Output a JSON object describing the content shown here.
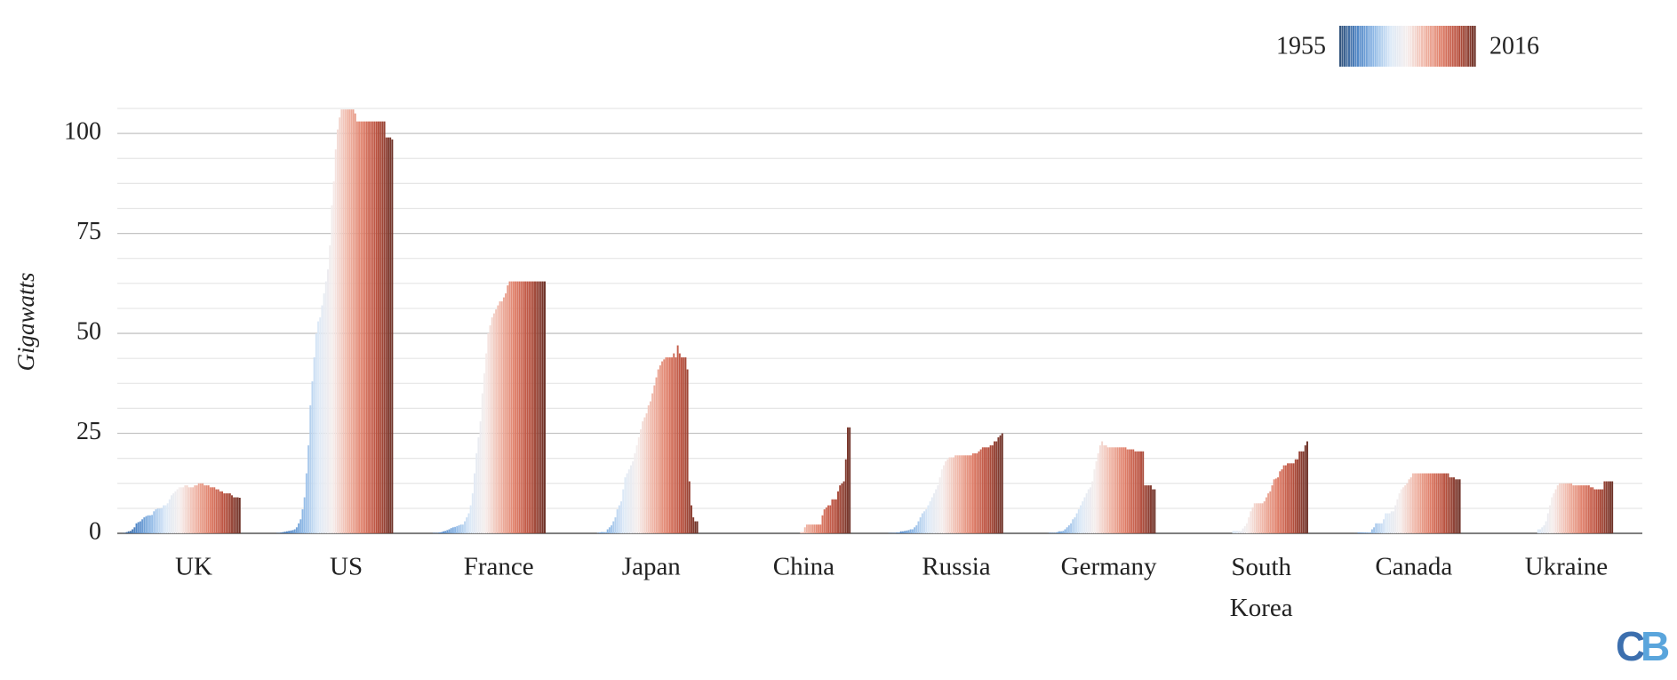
{
  "chart_data": {
    "type": "year_bars",
    "y_label": "Gigawatts",
    "legend": {
      "labels": [
        "1955",
        "2016"
      ]
    },
    "logo": [
      "C",
      "B"
    ],
    "colormap": [
      "#34557d",
      "#4f85c5",
      "#8fb9e6",
      "#dce9f7",
      "#f6eeec",
      "#f0b7a8",
      "#df7e68",
      "#b8503e",
      "#6e3228"
    ],
    "ylim": [
      0,
      106.25
    ],
    "yticks": [
      0,
      25,
      50,
      75,
      100
    ],
    "minor_yticks": [
      6.25,
      12.5,
      18.75,
      31.25,
      37.5,
      43.75,
      56.25,
      62.5,
      68.75,
      81.25,
      87.5,
      93.75,
      106.25
    ],
    "grid": true,
    "categories": [
      "UK",
      "US",
      "France",
      "Japan",
      "China",
      "Russia",
      "Germany",
      "South Korea",
      "Canada",
      "Ukraine"
    ],
    "values": [
      [
        0,
        0.05,
        0.1,
        0.3,
        0.5,
        0.6,
        1,
        1.5,
        2.5,
        2.8,
        3,
        3.5,
        4,
        4.3,
        4.5,
        4.5,
        4.6,
        5.5,
        6,
        6.2,
        6.2,
        6.3,
        7,
        7,
        7.5,
        8.5,
        9.5,
        10,
        10.5,
        11,
        11.5,
        11.5,
        11.5,
        12,
        12,
        11.5,
        11.5,
        11.5,
        12,
        12,
        12.5,
        12.5,
        12.5,
        12,
        12,
        12,
        11.5,
        11.5,
        11.5,
        11,
        11,
        10.5,
        10.5,
        10,
        10,
        10,
        10,
        9.5,
        9,
        9,
        9,
        8.9
      ],
      [
        0,
        0,
        0.1,
        0.1,
        0.2,
        0.3,
        0.4,
        0.5,
        0.6,
        0.7,
        0.8,
        1,
        1.5,
        2.5,
        3.5,
        6,
        9,
        15,
        22,
        32,
        38,
        44,
        50,
        53,
        54,
        57,
        60,
        63,
        66,
        72,
        82,
        88,
        96,
        101,
        104,
        106,
        106,
        106,
        106,
        106,
        106,
        106,
        105,
        103,
        103,
        103,
        103,
        103,
        103,
        103,
        103,
        103,
        103,
        103,
        103,
        103,
        103,
        103,
        99,
        99,
        99,
        98.5
      ],
      [
        0,
        0,
        0,
        0,
        0.1,
        0.1,
        0.1,
        0.2,
        0.3,
        0.5,
        0.6,
        0.8,
        1,
        1.3,
        1.5,
        1.6,
        1.8,
        2,
        2.2,
        2.2,
        3,
        4,
        5,
        7,
        10,
        15,
        20,
        24,
        28,
        35,
        40,
        45,
        50,
        52,
        54,
        55,
        56,
        57,
        58,
        58,
        59,
        60,
        62,
        63,
        63,
        63,
        63,
        63,
        63,
        63,
        63,
        63,
        63,
        63,
        63,
        63,
        63,
        63,
        63,
        63,
        63,
        63
      ],
      [
        0,
        0,
        0,
        0,
        0,
        0,
        0,
        0,
        0,
        0,
        0.1,
        0.2,
        0.3,
        0.3,
        0.3,
        1,
        1.5,
        2,
        3,
        4,
        6,
        7,
        8,
        11,
        14,
        15,
        16,
        17,
        18,
        20,
        22,
        24,
        26,
        28,
        29,
        30,
        32,
        33,
        35,
        37,
        39,
        41,
        42,
        43,
        43.5,
        44,
        44,
        44,
        44,
        45,
        44,
        47,
        45,
        44,
        44,
        44,
        41,
        13,
        7,
        4,
        3,
        3
      ],
      [
        0,
        0,
        0,
        0,
        0,
        0,
        0,
        0,
        0,
        0,
        0,
        0,
        0,
        0,
        0,
        0,
        0,
        0,
        0,
        0,
        0,
        0,
        0,
        0,
        0,
        0,
        0,
        0,
        0,
        0,
        0,
        0,
        0,
        0,
        0,
        0,
        0.3,
        0.3,
        1.5,
        2.2,
        2.2,
        2.2,
        2.2,
        2.2,
        2.2,
        2.2,
        2.2,
        4.5,
        6,
        6.5,
        7,
        7,
        8.5,
        8.5,
        8.5,
        10.5,
        12,
        12.5,
        13,
        18.5,
        26.5,
        26.5
      ],
      [
        0.005,
        0.005,
        0.005,
        0.1,
        0.1,
        0.1,
        0.1,
        0.2,
        0.2,
        0.5,
        0.5,
        0.6,
        0.7,
        0.8,
        1,
        1,
        1.5,
        2,
        3,
        4,
        5,
        5.5,
        6,
        7,
        8,
        9,
        10,
        11,
        12,
        14,
        16,
        17,
        18,
        18.5,
        19,
        19,
        19,
        19.5,
        19.5,
        19.5,
        19.5,
        19.5,
        19.5,
        19.5,
        19.5,
        19.5,
        20,
        20,
        20,
        20.5,
        21,
        21.5,
        21.5,
        21.5,
        21.5,
        22,
        22,
        23,
        23,
        24,
        24.5,
        25
      ],
      [
        0,
        0,
        0,
        0,
        0,
        0,
        0.02,
        0.1,
        0.1,
        0.1,
        0.1,
        0.3,
        0.5,
        0.5,
        0.6,
        1,
        1.5,
        2,
        2.5,
        3.5,
        4,
        5,
        6,
        7,
        8,
        9,
        10,
        11,
        11.5,
        13,
        16,
        18,
        20,
        22,
        23,
        22,
        22,
        21.5,
        21.5,
        21.5,
        21.5,
        21.5,
        21.5,
        21.5,
        21.5,
        21.5,
        21.5,
        21,
        21,
        21,
        21,
        20.5,
        20.5,
        20.5,
        20.5,
        20.5,
        12,
        12,
        12,
        12,
        11,
        11
      ],
      [
        0,
        0,
        0,
        0,
        0,
        0,
        0,
        0,
        0,
        0,
        0,
        0,
        0,
        0,
        0,
        0,
        0,
        0,
        0,
        0,
        0,
        0,
        0,
        0.6,
        0.6,
        0.6,
        0.6,
        0.6,
        1.2,
        1.8,
        2.5,
        4,
        5.5,
        6.5,
        7.5,
        7.5,
        7.5,
        7.5,
        7.5,
        8,
        9,
        10,
        10.5,
        12,
        13.5,
        13.7,
        14,
        15.5,
        16,
        17,
        17,
        17.5,
        17.5,
        17.5,
        17.5,
        18.5,
        18.5,
        20.5,
        20.5,
        20.5,
        22,
        23
      ],
      [
        0,
        0,
        0,
        0,
        0,
        0,
        0,
        0.02,
        0.02,
        0.2,
        0.2,
        0.2,
        0.2,
        0.2,
        0.2,
        0.2,
        1,
        1.5,
        2.5,
        2.5,
        2.5,
        2.5,
        3.5,
        5,
        5,
        5,
        5.5,
        5.5,
        7,
        8.5,
        10,
        11,
        11.5,
        12,
        12.5,
        13.5,
        14,
        15,
        15,
        15,
        15,
        15,
        15,
        15,
        15,
        15,
        15,
        15,
        15,
        15,
        15,
        15,
        15,
        15,
        15,
        15,
        14,
        14,
        14,
        13.5,
        13.5,
        13.5
      ],
      [
        0,
        0,
        0,
        0,
        0,
        0,
        0,
        0,
        0,
        0,
        0,
        0,
        0,
        0,
        0,
        0,
        0,
        0,
        0,
        0,
        0,
        0,
        0,
        1,
        1,
        1.5,
        2,
        3,
        5,
        7,
        9,
        10,
        11,
        12,
        12.5,
        12.5,
        12.5,
        12.5,
        12.5,
        12.5,
        12.5,
        12,
        12,
        12,
        12,
        12,
        12,
        12,
        12,
        12,
        11.5,
        11.5,
        11,
        11,
        11,
        11,
        11,
        13,
        13,
        13,
        13,
        13
      ]
    ]
  }
}
